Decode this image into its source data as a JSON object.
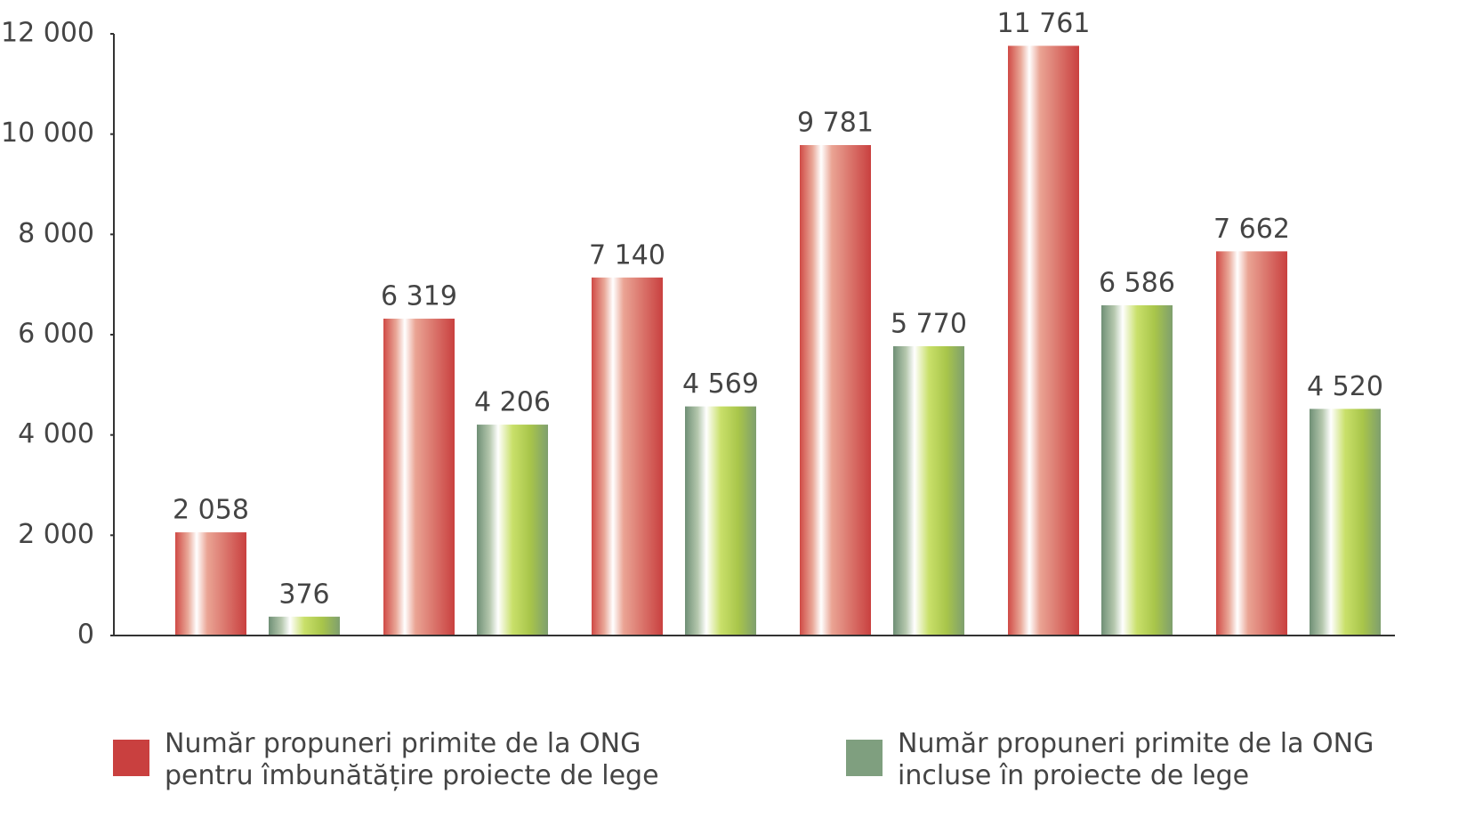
{
  "chart_data": {
    "type": "bar",
    "categories": [
      null,
      null,
      null,
      null,
      null,
      null
    ],
    "series": [
      {
        "name": "Număr propuneri primite de la ONG pentru îmbunătățire proiecte de lege",
        "color": "#c9403f",
        "values": [
          2058,
          6319,
          7140,
          9781,
          11761,
          7662
        ],
        "value_labels": [
          "2 058",
          "6 319",
          "7 140",
          "9 781",
          "11 761",
          "7 662"
        ]
      },
      {
        "name": "Număr propuneri primite de la ONG incluse în proiecte de lege",
        "color": "#7f9f7f",
        "values": [
          376,
          4206,
          4569,
          5770,
          6586,
          4520
        ],
        "value_labels": [
          "376",
          "4 206",
          "4 569",
          "5 770",
          "6 586",
          "4 520"
        ]
      }
    ],
    "ylim": [
      0,
      12000
    ],
    "yticks": [
      0,
      {
        "value": 2000,
        "label": "2 000"
      },
      {
        "value": 4000,
        "label": "4 000"
      },
      {
        "value": 6000,
        "label": "6 000"
      },
      {
        "value": 8000,
        "label": "8 000"
      },
      {
        "value": 10000,
        "label": "10 000"
      },
      {
        "value": 12000,
        "label": "12 000"
      }
    ],
    "grid": false
  }
}
